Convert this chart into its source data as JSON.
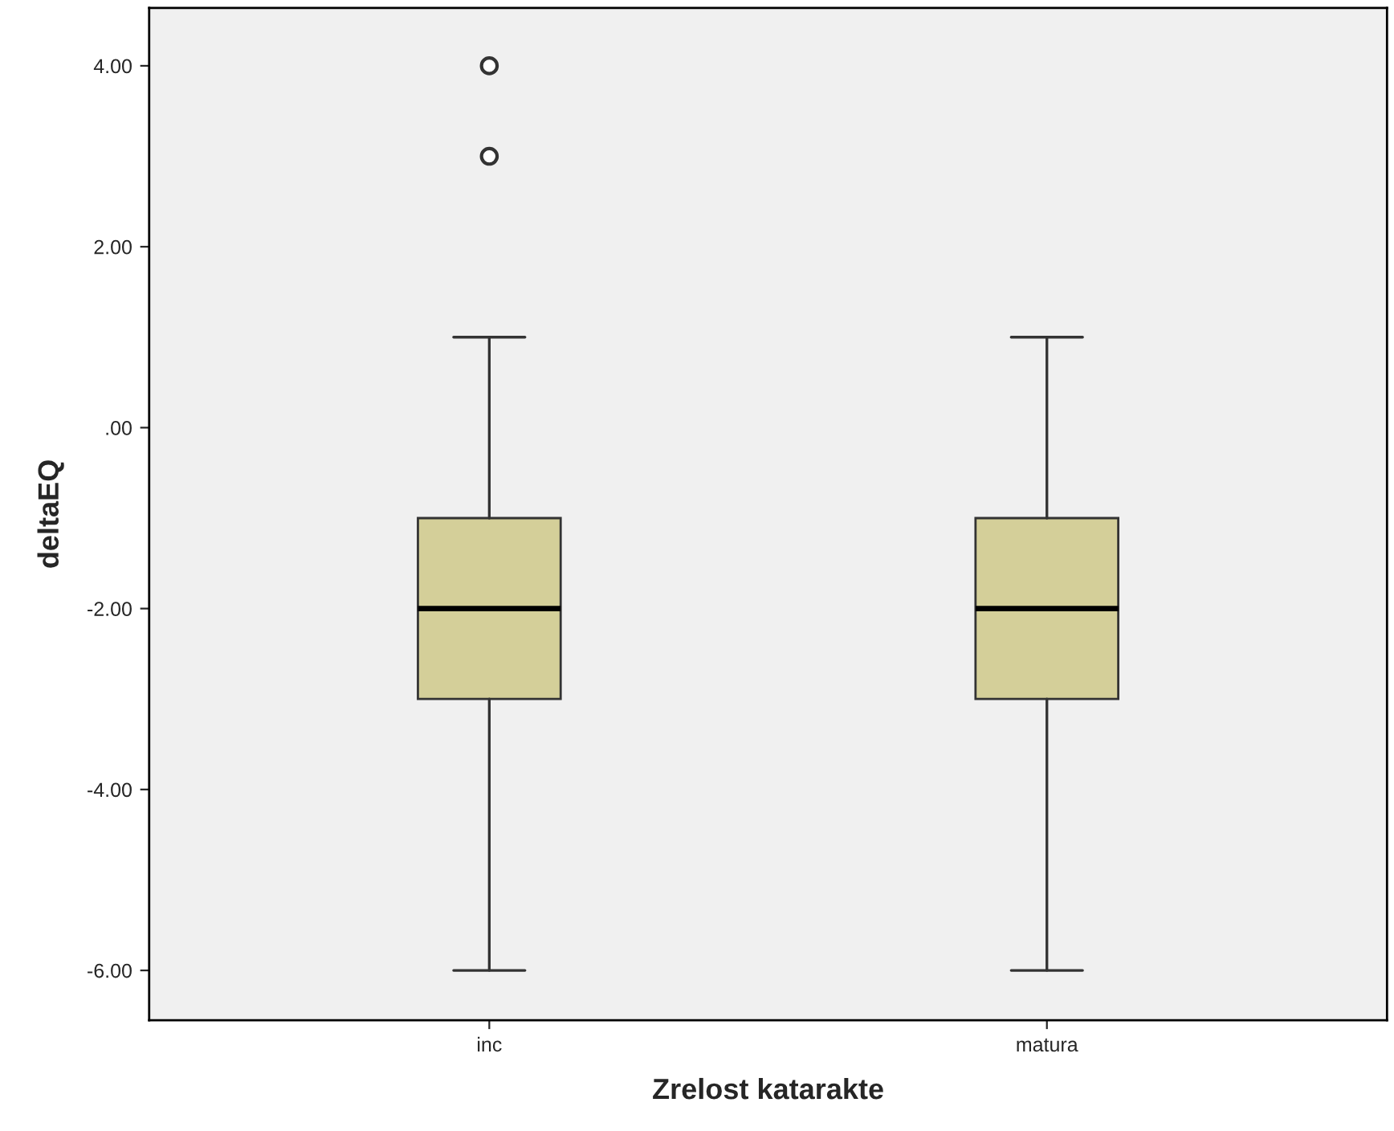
{
  "chart_data": {
    "type": "box",
    "xlabel": "Zrelost katarakte",
    "ylabel": "deltaEQ",
    "categories": [
      "inc",
      "matura"
    ],
    "series": [
      {
        "color": "#d4cf99",
        "boxes": [
          {
            "low": -6,
            "q1": -3,
            "median": -2,
            "q3": -1,
            "high": 1,
            "outliers": [
              3,
              4
            ]
          },
          {
            "low": -6,
            "q1": -3,
            "median": -2,
            "q3": -1,
            "high": 1
          }
        ]
      }
    ],
    "ylim": [
      -6.55,
      4.64
    ],
    "yticks": [
      {
        "value": -6,
        "label": "-6.00"
      },
      {
        "value": -4,
        "label": "-4.00"
      },
      {
        "value": -2,
        "label": "-2.00"
      },
      {
        "value": 0,
        "label": ".00"
      },
      {
        "value": 2,
        "label": "2.00"
      },
      {
        "value": 4,
        "label": "4.00"
      }
    ],
    "grid": false
  }
}
